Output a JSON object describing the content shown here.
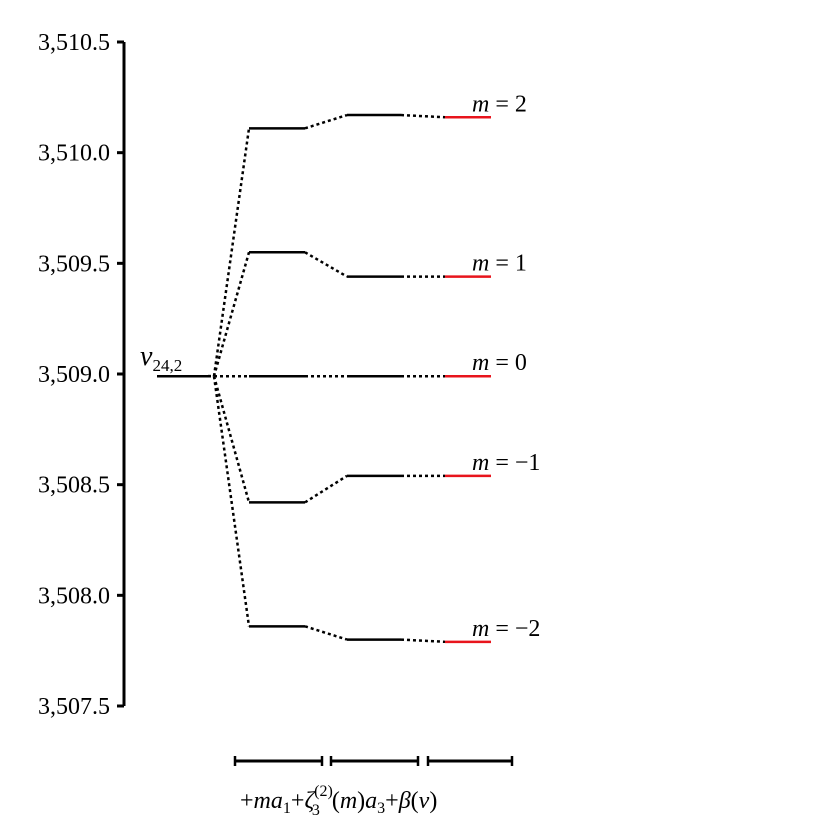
{
  "chart_data": {
    "type": "energy-level-diagram",
    "y_axis": {
      "ticks": [
        3507.5,
        3508.0,
        3508.5,
        3509.0,
        3509.5,
        3510.0,
        3510.5
      ],
      "tick_labels": [
        "3,507.5",
        "3,508.0",
        "3,508.5",
        "3,509.0",
        "3,509.5",
        "3,510.0",
        "3,510.5"
      ],
      "ylim": [
        3507.5,
        3510.5
      ]
    },
    "origin_level": {
      "symbol": "ν",
      "subscript": "24,2",
      "value": 3508.99
    },
    "levels": [
      {
        "m": "2",
        "stages": [
          3510.11,
          3510.17,
          3510.16
        ]
      },
      {
        "m": "1",
        "stages": [
          3509.55,
          3509.44,
          3509.44
        ]
      },
      {
        "m": "0",
        "stages": [
          3508.99,
          3508.99,
          3508.99
        ]
      },
      {
        "m": "−1",
        "stages": [
          3508.42,
          3508.54,
          3508.54
        ]
      },
      {
        "m": "−2",
        "stages": [
          3507.86,
          3507.8,
          3507.79
        ]
      }
    ],
    "level_label_prefix": "m",
    "level_label_eq": " = ",
    "final_color": "#e8141c",
    "line_color": "#000000",
    "x_terms": {
      "t1": "+",
      "t2": "m",
      "t3": "a",
      "t4": "1",
      "t5": "+",
      "t6": "ζ",
      "t7": "(2)",
      "t8": "3",
      "t9": "(",
      "t10": "m",
      "t11": ")",
      "t12": "a",
      "t13": "3",
      "t14": "+",
      "t15": "β",
      "t16": "(",
      "t17": "ν",
      "t18": ")"
    }
  }
}
